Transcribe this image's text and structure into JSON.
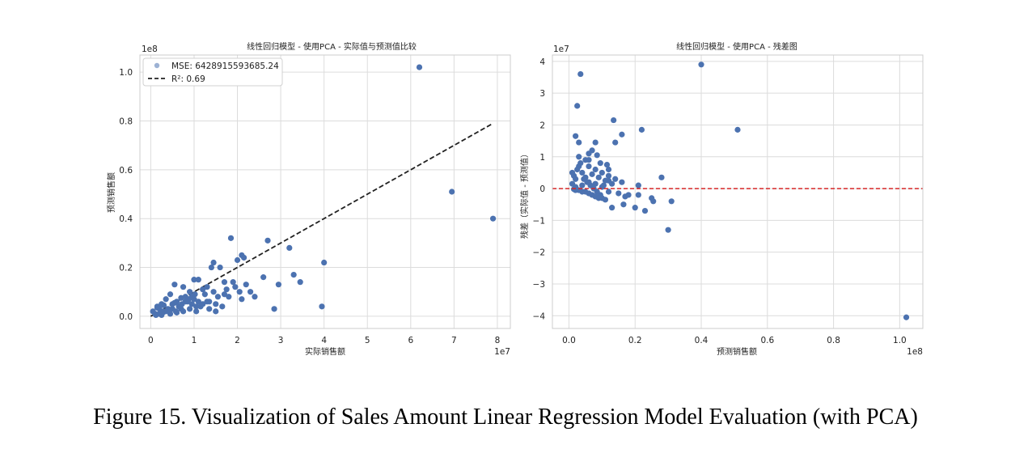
{
  "caption": "Figure 15. Visualization of Sales Amount Linear Regression Model Evaluation (with PCA)",
  "colors": {
    "points": "#4c72b0",
    "fit_line": "#222222",
    "zero_line": "#d62728",
    "grid": "#dcdcdc"
  },
  "chart_data": [
    {
      "type": "scatter",
      "title": "线性回归模型 - 使用PCA - 实际值与预测值比较",
      "xlabel": "实际销售额",
      "ylabel": "预测销售额",
      "x_scale_label": "1e7",
      "y_scale_label": "1e8",
      "xlim": [
        -0.25,
        8.3
      ],
      "ylim": [
        -0.05,
        1.07
      ],
      "xticks": [
        "0",
        "1",
        "2",
        "3",
        "4",
        "5",
        "6",
        "7",
        "8"
      ],
      "yticks": [
        "0.0",
        "0.2",
        "0.4",
        "0.6",
        "0.8",
        "1.0"
      ],
      "legend": {
        "position": "top-left",
        "mse": "MSE: 6428915593685.24",
        "r2": "R²: 0.69"
      },
      "fit_line": {
        "x": [
          0,
          7.9
        ],
        "y": [
          0,
          0.79
        ]
      },
      "grid": true,
      "series": [
        {
          "values_x": [
            6.2,
            6.95,
            7.9,
            1.85,
            2.1,
            2.0,
            2.15,
            2.7,
            3.2,
            1.4,
            1.45,
            1.6,
            1.7,
            2.6,
            2.95,
            3.3,
            3.45,
            4.0,
            3.95,
            2.85,
            2.3,
            2.2,
            2.4,
            1.1,
            1.0,
            1.3,
            1.5,
            1.9,
            1.8,
            2.1,
            1.65,
            1.2,
            0.9,
            0.75,
            0.55,
            0.45,
            0.35,
            0.25,
            0.15,
            0.05,
            0.6,
            0.8,
            1.0,
            1.25,
            1.45,
            1.35,
            1.15,
            0.95,
            0.7,
            0.5,
            0.3,
            0.2,
            0.4,
            0.65,
            0.85,
            1.05,
            1.3,
            1.55,
            1.75,
            1.95,
            2.05,
            1.7,
            1.5,
            0.1,
            0.12,
            0.2,
            0.28,
            0.35,
            0.42,
            0.5,
            0.58,
            0.65,
            0.72,
            0.8,
            0.88,
            0.95,
            1.02,
            1.1,
            0.25,
            0.45,
            0.6,
            0.75,
            0.9,
            1.05,
            1.2,
            1.35,
            0.15,
            0.3,
            0.55,
            0.7
          ],
          "values_y": [
            1.02,
            0.51,
            0.4,
            0.32,
            0.25,
            0.23,
            0.24,
            0.31,
            0.28,
            0.2,
            0.22,
            0.2,
            0.14,
            0.16,
            0.13,
            0.17,
            0.14,
            0.22,
            0.04,
            0.03,
            0.1,
            0.13,
            0.08,
            0.15,
            0.15,
            0.12,
            0.05,
            0.14,
            0.08,
            0.07,
            0.04,
            0.11,
            0.1,
            0.12,
            0.13,
            0.09,
            0.07,
            0.05,
            0.04,
            0.02,
            0.06,
            0.08,
            0.07,
            0.09,
            0.1,
            0.03,
            0.04,
            0.05,
            0.03,
            0.05,
            0.02,
            0.03,
            0.03,
            0.04,
            0.06,
            0.02,
            0.06,
            0.08,
            0.11,
            0.12,
            0.1,
            0.09,
            0.02,
            0.01,
            0.005,
            0.01,
            0.015,
            0.02,
            0.025,
            0.03,
            0.02,
            0.04,
            0.05,
            0.06,
            0.07,
            0.08,
            0.09,
            0.06,
            0.005,
            0.01,
            0.015,
            0.02,
            0.03,
            0.04,
            0.05,
            0.06,
            0.035,
            0.045,
            0.055,
            0.075
          ]
        }
      ]
    },
    {
      "type": "scatter",
      "title": "线性回归模型 - 使用PCA - 残差图",
      "xlabel": "预测销售额",
      "ylabel": "残差（实际值 - 预测值）",
      "x_scale_label": "1e8",
      "y_scale_label": "1e7",
      "xlim": [
        -0.05,
        1.07
      ],
      "ylim": [
        -4.4,
        4.2
      ],
      "xticks": [
        "0.0",
        "0.2",
        "0.4",
        "0.6",
        "0.8",
        "1.0"
      ],
      "yticks": [
        "4",
        "3",
        "2",
        "1",
        "0",
        "−1",
        "−2",
        "−3",
        "−4"
      ],
      "zero_line": 0,
      "grid": true,
      "series": [
        {
          "values_x": [
            1.02,
            0.4,
            0.51,
            0.035,
            0.025,
            0.135,
            0.22,
            0.02,
            0.03,
            0.16,
            0.14,
            0.08,
            0.085,
            0.06,
            0.06,
            0.095,
            0.31,
            0.28,
            0.21,
            0.12,
            0.115,
            0.02,
            0.04,
            0.06,
            0.08,
            0.1,
            0.12,
            0.14,
            0.16,
            0.18,
            0.2,
            0.23,
            0.25,
            0.3,
            0.255,
            0.21,
            0.165,
            0.13,
            0.11,
            0.09,
            0.07,
            0.05,
            0.03,
            0.015,
            0.01,
            0.02,
            0.04,
            0.06,
            0.08,
            0.1,
            0.12,
            0.015,
            0.025,
            0.035,
            0.045,
            0.055,
            0.065,
            0.075,
            0.085,
            0.095,
            0.105,
            0.12,
            0.03,
            0.05,
            0.07,
            0.09,
            0.11,
            0.13,
            0.15,
            0.17,
            0.02,
            0.04,
            0.06,
            0.08,
            0.1,
            0.01,
            0.03,
            0.05,
            0.07
          ],
          "values_y": [
            -4.05,
            3.9,
            1.85,
            3.6,
            2.6,
            2.15,
            1.85,
            1.65,
            1.45,
            1.7,
            1.45,
            1.45,
            1.05,
            1.1,
            0.9,
            0.8,
            -0.4,
            0.35,
            0.1,
            0.6,
            0.75,
            0.3,
            0.5,
            0.7,
            0.6,
            0.5,
            0.4,
            0.3,
            0.2,
            -0.2,
            -0.6,
            -0.7,
            -0.3,
            -1.3,
            -0.4,
            -0.2,
            -0.5,
            -0.6,
            -0.35,
            -0.3,
            -0.2,
            -0.1,
            -0.05,
            -0.02,
            0.15,
            0.05,
            0.1,
            0.2,
            0.15,
            0.05,
            -0.1,
            0.4,
            0.6,
            0.8,
            0.3,
            0.2,
            0.1,
            0.0,
            -0.1,
            -0.2,
            0.1,
            0.25,
            1.0,
            0.35,
            0.45,
            0.35,
            0.25,
            0.15,
            -0.15,
            -0.25,
            -0.05,
            -0.1,
            -0.15,
            -0.25,
            -0.3,
            0.5,
            0.7,
            0.9,
            1.2
          ]
        }
      ]
    }
  ]
}
